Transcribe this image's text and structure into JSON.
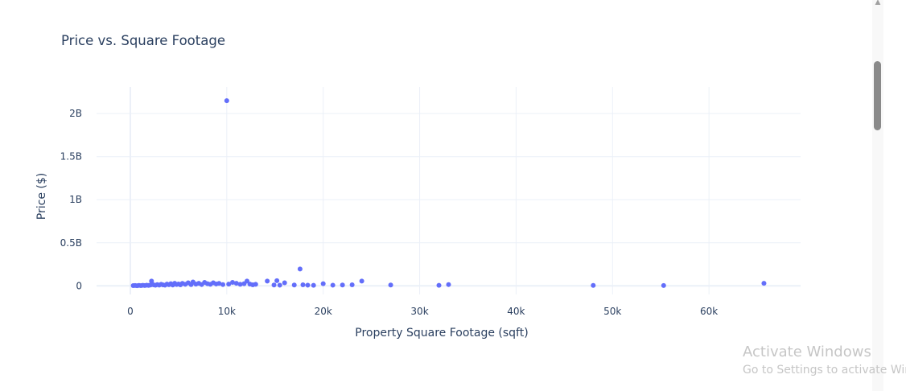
{
  "chart_data": {
    "type": "scatter",
    "title": "Price vs. Square Footage",
    "xlabel": "Property Square Footage (sqft)",
    "ylabel": "Price ($)",
    "xlim": [
      -3500,
      69500
    ],
    "ylim": [
      -100000000,
      2310000000
    ],
    "xticks": [
      0,
      10000,
      20000,
      30000,
      40000,
      50000,
      60000
    ],
    "xtick_labels": [
      "0",
      "10k",
      "20k",
      "30k",
      "40k",
      "50k",
      "60k"
    ],
    "yticks": [
      0,
      500000000,
      1000000000,
      1500000000,
      2000000000
    ],
    "ytick_labels": [
      "0",
      "0.5B",
      "1B",
      "1.5B",
      "2B"
    ],
    "grid": true,
    "marker_color": "#636efa",
    "points": [
      {
        "x": 300,
        "y": 3000000
      },
      {
        "x": 500,
        "y": 4000000
      },
      {
        "x": 700,
        "y": 2000000
      },
      {
        "x": 900,
        "y": 5000000
      },
      {
        "x": 1100,
        "y": 3000000
      },
      {
        "x": 1300,
        "y": 6000000
      },
      {
        "x": 1500,
        "y": 4000000
      },
      {
        "x": 1700,
        "y": 8000000
      },
      {
        "x": 1900,
        "y": 5000000
      },
      {
        "x": 2100,
        "y": 10000000
      },
      {
        "x": 2200,
        "y": 55000000
      },
      {
        "x": 2400,
        "y": 12000000
      },
      {
        "x": 2600,
        "y": 7000000
      },
      {
        "x": 2800,
        "y": 15000000
      },
      {
        "x": 3000,
        "y": 9000000
      },
      {
        "x": 3200,
        "y": 18000000
      },
      {
        "x": 3400,
        "y": 11000000
      },
      {
        "x": 3600,
        "y": 8000000
      },
      {
        "x": 3800,
        "y": 20000000
      },
      {
        "x": 4000,
        "y": 13000000
      },
      {
        "x": 4200,
        "y": 25000000
      },
      {
        "x": 4400,
        "y": 10000000
      },
      {
        "x": 4600,
        "y": 30000000
      },
      {
        "x": 4800,
        "y": 16000000
      },
      {
        "x": 5000,
        "y": 22000000
      },
      {
        "x": 5200,
        "y": 12000000
      },
      {
        "x": 5400,
        "y": 28000000
      },
      {
        "x": 5700,
        "y": 18000000
      },
      {
        "x": 6000,
        "y": 35000000
      },
      {
        "x": 6300,
        "y": 14000000
      },
      {
        "x": 6500,
        "y": 45000000
      },
      {
        "x": 6800,
        "y": 20000000
      },
      {
        "x": 7100,
        "y": 30000000
      },
      {
        "x": 7400,
        "y": 15000000
      },
      {
        "x": 7700,
        "y": 40000000
      },
      {
        "x": 8000,
        "y": 25000000
      },
      {
        "x": 8300,
        "y": 18000000
      },
      {
        "x": 8600,
        "y": 35000000
      },
      {
        "x": 8900,
        "y": 22000000
      },
      {
        "x": 9200,
        "y": 28000000
      },
      {
        "x": 9600,
        "y": 15000000
      },
      {
        "x": 10000,
        "y": 2150000000
      },
      {
        "x": 10200,
        "y": 20000000
      },
      {
        "x": 10600,
        "y": 40000000
      },
      {
        "x": 11000,
        "y": 30000000
      },
      {
        "x": 11400,
        "y": 18000000
      },
      {
        "x": 11800,
        "y": 25000000
      },
      {
        "x": 12100,
        "y": 55000000
      },
      {
        "x": 12400,
        "y": 20000000
      },
      {
        "x": 12700,
        "y": 12000000
      },
      {
        "x": 13000,
        "y": 18000000
      },
      {
        "x": 14200,
        "y": 55000000
      },
      {
        "x": 14900,
        "y": 10000000
      },
      {
        "x": 15200,
        "y": 60000000
      },
      {
        "x": 15500,
        "y": 8000000
      },
      {
        "x": 16000,
        "y": 35000000
      },
      {
        "x": 17000,
        "y": 10000000
      },
      {
        "x": 17600,
        "y": 195000000
      },
      {
        "x": 17900,
        "y": 12000000
      },
      {
        "x": 18400,
        "y": 8000000
      },
      {
        "x": 19000,
        "y": 6000000
      },
      {
        "x": 20000,
        "y": 25000000
      },
      {
        "x": 21000,
        "y": 8000000
      },
      {
        "x": 22000,
        "y": 10000000
      },
      {
        "x": 23000,
        "y": 12000000
      },
      {
        "x": 24000,
        "y": 55000000
      },
      {
        "x": 27000,
        "y": 10000000
      },
      {
        "x": 32000,
        "y": 6000000
      },
      {
        "x": 33000,
        "y": 15000000
      },
      {
        "x": 48000,
        "y": 5000000
      },
      {
        "x": 55300,
        "y": 4000000
      },
      {
        "x": 65700,
        "y": 30000000
      }
    ]
  },
  "watermark": {
    "title": "Activate Windows",
    "subtitle": "Go to Settings to activate Windows."
  },
  "scrollbar": {
    "arrow_icon": "chevron-up-icon"
  }
}
